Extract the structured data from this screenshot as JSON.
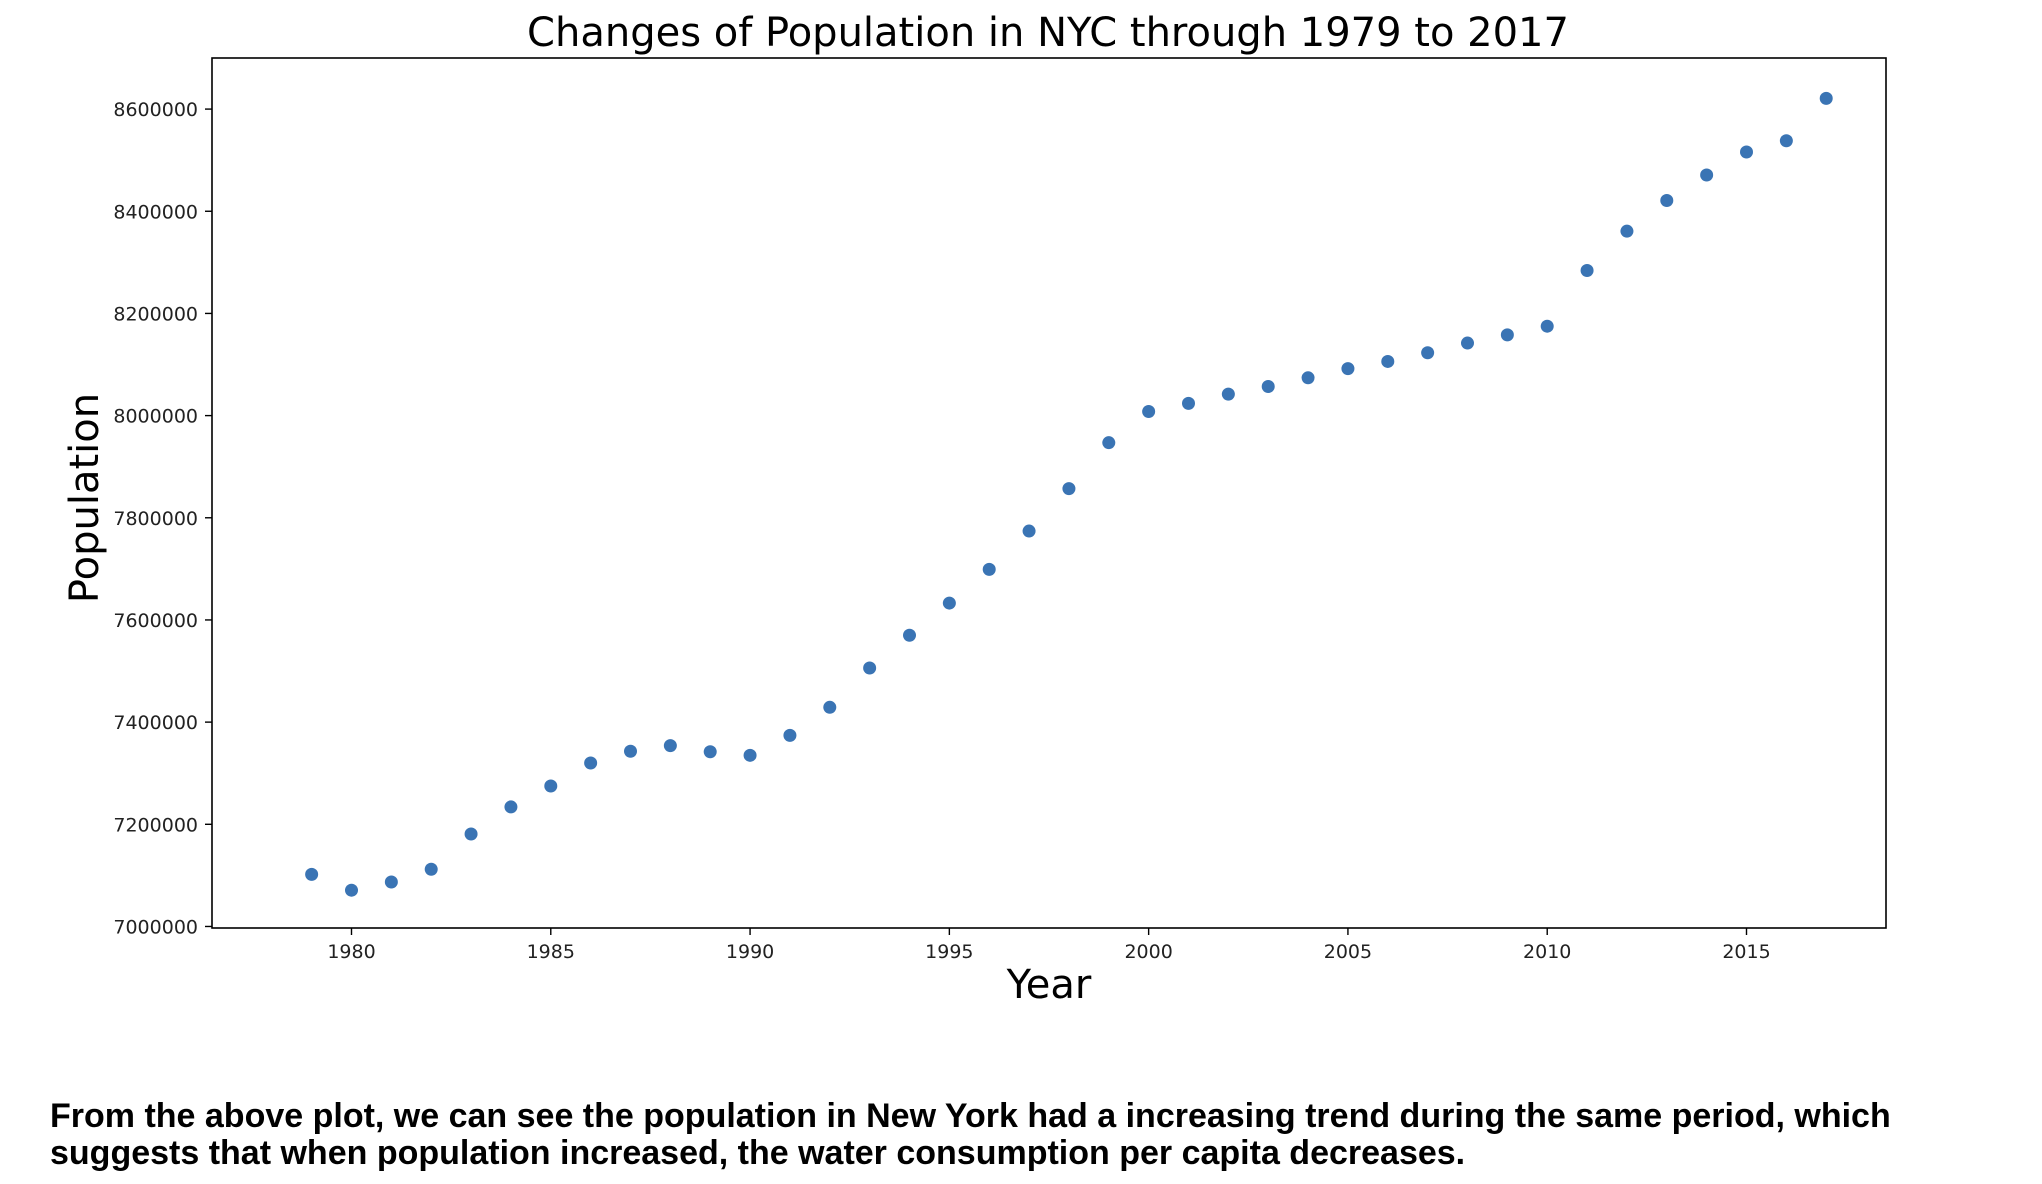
{
  "chart_data": {
    "type": "scatter",
    "title": "Changes of Population in NYC through 1979 to 2017",
    "xlabel": "Year",
    "ylabel": "Population",
    "xlim": [
      1976.5,
      2018.5
    ],
    "ylim": [
      6997000,
      8700000
    ],
    "x_ticks": [
      1980,
      1985,
      1990,
      1995,
      2000,
      2005,
      2010,
      2015
    ],
    "y_ticks": [
      7000000,
      7200000,
      7400000,
      7600000,
      7800000,
      8000000,
      8200000,
      8400000,
      8600000
    ],
    "grid": false,
    "marker_color": "#3a74b4",
    "series": [
      {
        "x": [
          1979,
          1980,
          1981,
          1982,
          1983,
          1984,
          1985,
          1986,
          1987,
          1988,
          1989,
          1990,
          1991,
          1992,
          1993,
          1994,
          1995,
          1996,
          1997,
          1998,
          1999,
          2000,
          2001,
          2002,
          2003,
          2004,
          2005,
          2006,
          2007,
          2008,
          2009,
          2010,
          2011,
          2012,
          2013,
          2014,
          2015,
          2016,
          2017
        ],
        "y": [
          7102000,
          7071000,
          7087000,
          7112000,
          7181000,
          7234000,
          7275000,
          7320000,
          7343000,
          7354000,
          7342000,
          7335000,
          7374000,
          7429000,
          7506000,
          7570000,
          7633000,
          7699000,
          7774000,
          7857000,
          7947000,
          8008000,
          8024000,
          8042000,
          8057000,
          8074000,
          8092000,
          8106000,
          8123000,
          8142000,
          8158000,
          8175000,
          8284000,
          8361000,
          8421000,
          8471000,
          8516000,
          8538000,
          8621000
        ]
      }
    ]
  },
  "caption": "From the above plot, we can see the population in New York had a increasing trend during the same period, which suggests that when population increased, the water consumption per capita decreases."
}
